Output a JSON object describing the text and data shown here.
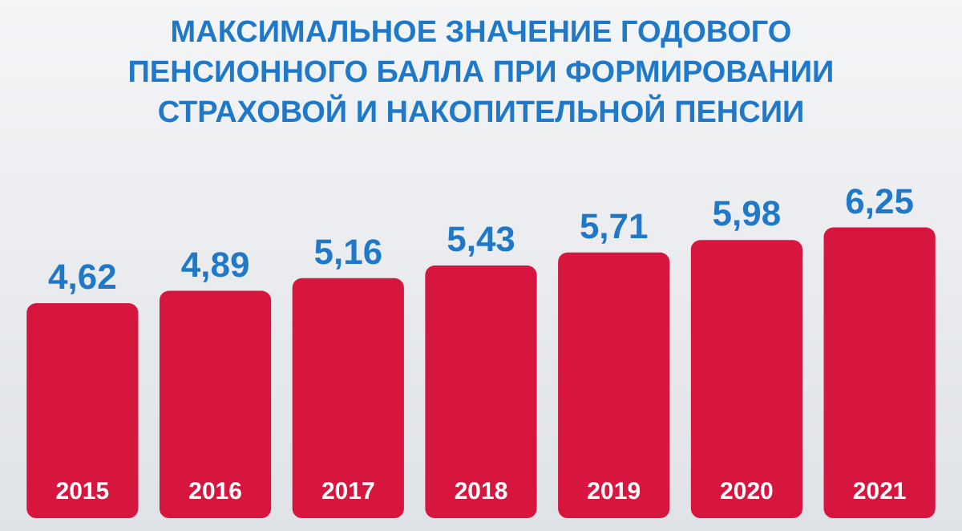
{
  "chart_data": {
    "type": "bar",
    "title": "МАКСИМАЛЬНОЕ ЗНАЧЕНИЕ ГОДОВОГО ПЕНСИОННОГО БАЛЛА ПРИ ФОРМИРОВАНИИ СТРАХОВОЙ И НАКОПИТЕЛЬНОЙ ПЕНСИИ",
    "categories": [
      "2015",
      "2016",
      "2017",
      "2018",
      "2019",
      "2020",
      "2021"
    ],
    "values": [
      4.62,
      4.89,
      5.16,
      5.43,
      5.71,
      5.98,
      6.25
    ],
    "value_labels": [
      "4,62",
      "4,89",
      "5,16",
      "5,43",
      "5,71",
      "5,98",
      "6,25"
    ],
    "color": "#d6163f",
    "legend": false
  }
}
